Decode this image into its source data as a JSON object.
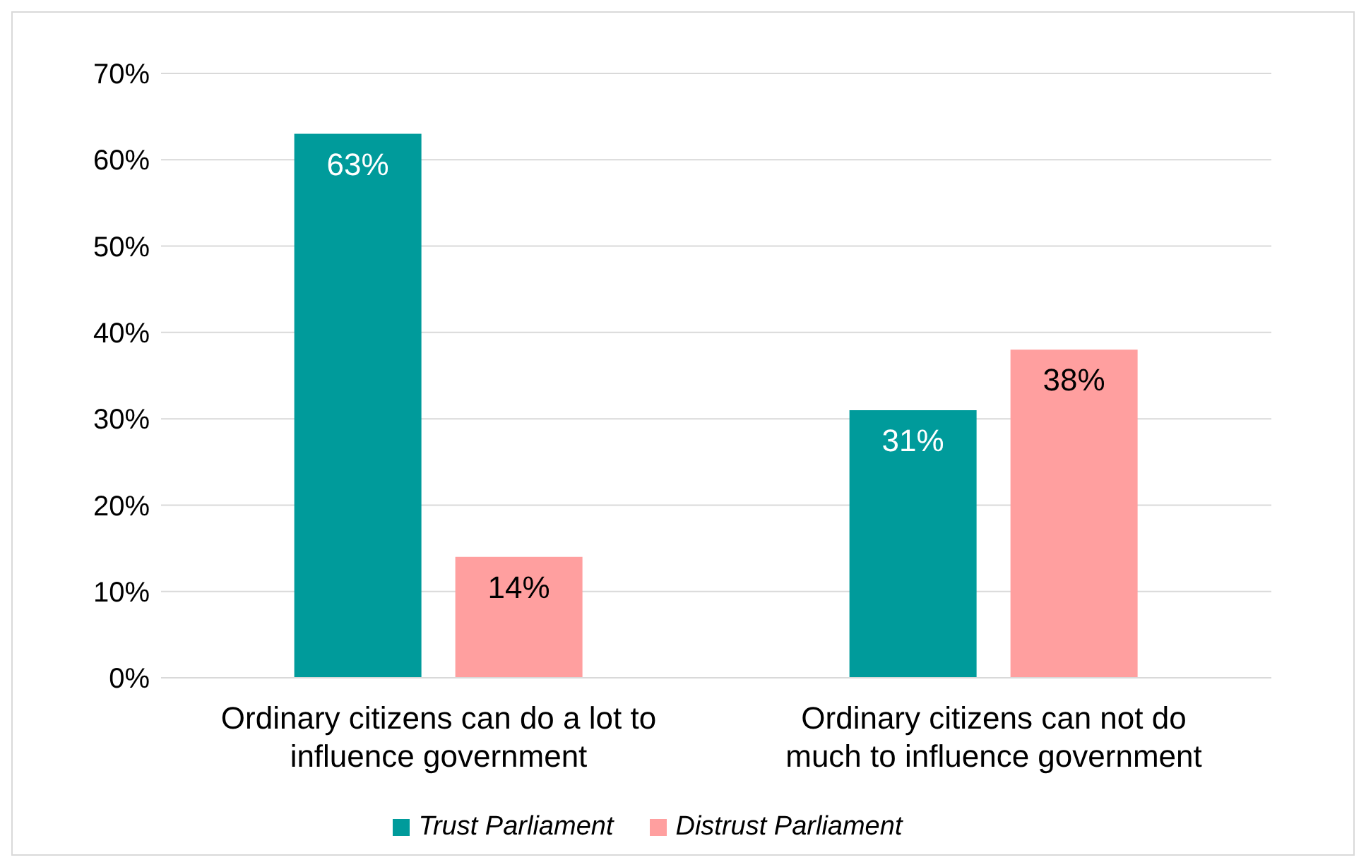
{
  "chart_data": {
    "type": "bar",
    "categories": [
      "Ordinary citizens can do a lot to influence government",
      "Ordinary citizens can not do much to influence government"
    ],
    "series": [
      {
        "name": "Trust Parliament",
        "color": "#009b9b",
        "values": [
          63,
          31
        ],
        "value_labels": [
          "63%",
          "31%"
        ]
      },
      {
        "name": "Distrust Parliament",
        "color": "#ff9f9f",
        "values": [
          14,
          38
        ],
        "value_labels": [
          "14%",
          "38%"
        ]
      }
    ],
    "ylim": [
      0,
      70
    ],
    "yticks": [
      {
        "value": 0,
        "label": "0%"
      },
      {
        "value": 10,
        "label": "10%"
      },
      {
        "value": 20,
        "label": "20%"
      },
      {
        "value": 30,
        "label": "30%"
      },
      {
        "value": 40,
        "label": "40%"
      },
      {
        "value": 50,
        "label": "50%"
      },
      {
        "value": 60,
        "label": "60%"
      },
      {
        "value": 70,
        "label": "70%"
      }
    ],
    "grid": "y",
    "legend": "bottom"
  }
}
